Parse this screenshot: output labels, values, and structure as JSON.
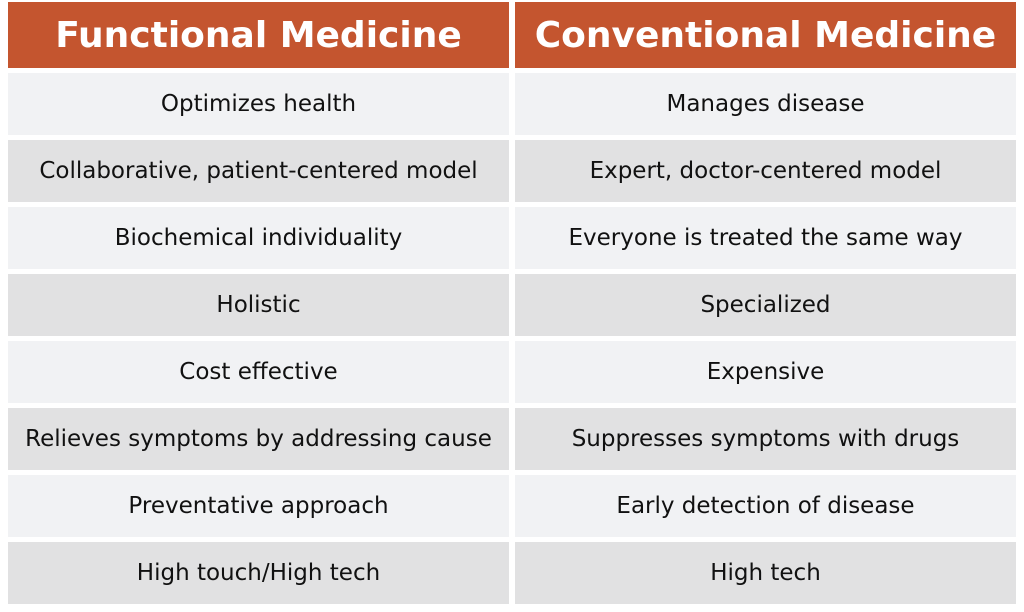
{
  "table": {
    "header": [
      "Functional Medicine",
      "Conventional Medicine"
    ],
    "rows": [
      [
        "Optimizes health",
        "Manages disease"
      ],
      [
        "Collaborative, patient-centered model",
        "Expert, doctor-centered model"
      ],
      [
        "Biochemical individuality",
        "Everyone is treated the same way"
      ],
      [
        "Holistic",
        "Specialized"
      ],
      [
        "Cost effective",
        "Expensive"
      ],
      [
        "Relieves symptoms by addressing cause",
        "Suppresses symptoms with drugs"
      ],
      [
        "Preventative approach",
        "Early detection of disease"
      ],
      [
        "High touch/High tech",
        "High tech"
      ]
    ]
  }
}
